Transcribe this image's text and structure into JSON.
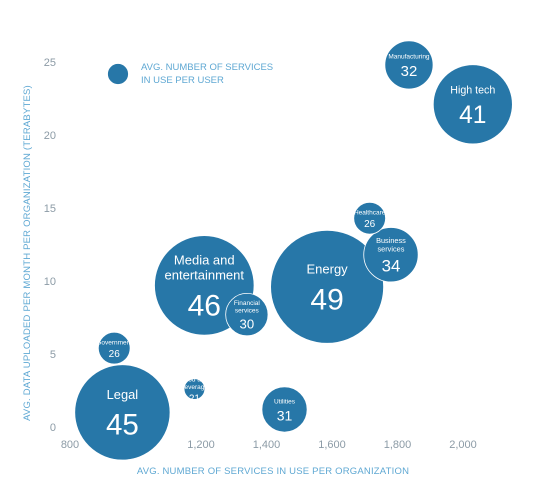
{
  "chart_data": {
    "type": "scatter",
    "xlabel": "AVG. NUMBER OF SERVICES IN USE PER ORGANIZATION",
    "ylabel": "AVG. DATA UPLOADED PER MONTH PER ORGANIZATION (TERABYTES)",
    "xlim": [
      800,
      2000
    ],
    "ylim": [
      0,
      25
    ],
    "x_ticks": [
      "800",
      "1,000",
      "1,200",
      "1,400",
      "1,600",
      "1,800",
      "2,000"
    ],
    "y_ticks": [
      "0",
      "5",
      "10",
      "15",
      "20",
      "25"
    ],
    "legend": [
      "AVG. NUMBER OF SERVICES",
      "IN USE PER USER"
    ],
    "color": "#2777a8",
    "points": [
      {
        "name": [
          "Manufacturing"
        ],
        "x": 1835,
        "y": 24.8,
        "size": 32
      },
      {
        "name": [
          "High tech"
        ],
        "x": 2030,
        "y": 22.1,
        "size": 41
      },
      {
        "name": [
          "Healthcare"
        ],
        "x": 1715,
        "y": 14.3,
        "size": 26
      },
      {
        "name": [
          "Business",
          "services"
        ],
        "x": 1780,
        "y": 11.8,
        "size": 34
      },
      {
        "name": [
          "Energy"
        ],
        "x": 1585,
        "y": 9.6,
        "size": 49
      },
      {
        "name": [
          "Media and",
          "entertainment"
        ],
        "x": 1210,
        "y": 9.7,
        "size": 46
      },
      {
        "name": [
          "Financial",
          "services"
        ],
        "x": 1340,
        "y": 7.7,
        "size": 30
      },
      {
        "name": [
          "Government"
        ],
        "x": 935,
        "y": 5.4,
        "size": 26
      },
      {
        "name": [
          "Food and",
          "beverage"
        ],
        "x": 1180,
        "y": 2.6,
        "size": 21
      },
      {
        "name": [
          "Utilities"
        ],
        "x": 1455,
        "y": 1.2,
        "size": 31
      },
      {
        "name": [
          "Legal"
        ],
        "x": 960,
        "y": 1.0,
        "size": 45
      }
    ]
  }
}
